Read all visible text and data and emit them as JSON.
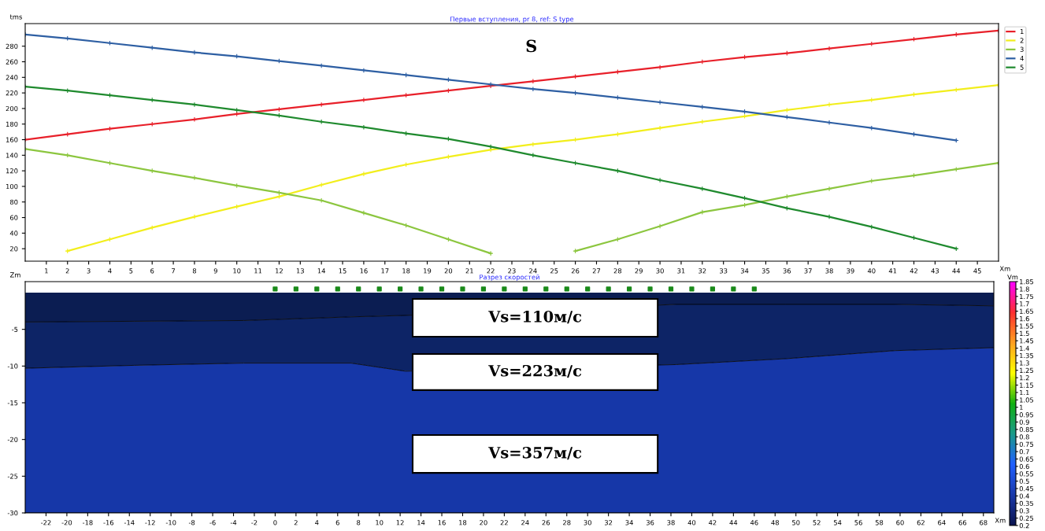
{
  "chart_data": [
    {
      "type": "line",
      "title": "Первые вступления, pr 8, ref: S type",
      "xlabel": "Xm",
      "ylabel": "tms",
      "x": [
        0,
        2,
        4,
        6,
        8,
        10,
        12,
        14,
        16,
        18,
        20,
        22,
        24,
        26,
        28,
        30,
        32,
        34,
        36,
        38,
        40,
        42,
        44,
        46
      ],
      "series": [
        {
          "name": "1",
          "color": "#e8202a",
          "values": [
            160,
            167,
            174,
            180,
            186,
            193,
            199,
            205,
            211,
            217,
            223,
            229,
            235,
            241,
            247,
            253,
            260,
            266,
            271,
            277,
            283,
            289,
            295,
            300
          ]
        },
        {
          "name": "2",
          "color": "#f2ee1c",
          "values": [
            null,
            17,
            32,
            47,
            61,
            74,
            87,
            102,
            116,
            128,
            138,
            147,
            154,
            160,
            167,
            175,
            183,
            190,
            198,
            205,
            211,
            218,
            224,
            230
          ]
        },
        {
          "name": "3",
          "color": "#8cc63f",
          "values": [
            148,
            140,
            130,
            120,
            111,
            101,
            92,
            82,
            66,
            50,
            32,
            14,
            null,
            17,
            32,
            49,
            67,
            76,
            87,
            97,
            107,
            114,
            122,
            130
          ]
        },
        {
          "name": "4",
          "color": "#2e5fa3",
          "values": [
            295,
            290,
            284,
            278,
            272,
            267,
            261,
            255,
            249,
            243,
            237,
            231,
            225,
            220,
            214,
            208,
            202,
            196,
            189,
            182,
            175,
            167,
            159,
            null
          ]
        },
        {
          "name": "5",
          "color": "#1f8a2e",
          "values": [
            228,
            223,
            217,
            211,
            205,
            198,
            191,
            183,
            176,
            168,
            161,
            151,
            140,
            130,
            120,
            108,
            97,
            85,
            72,
            61,
            48,
            34,
            20,
            null
          ]
        }
      ],
      "xlim": [
        0,
        46
      ],
      "ylim": [
        4,
        309
      ],
      "xticks": [
        1,
        2,
        3,
        4,
        5,
        6,
        7,
        8,
        9,
        10,
        11,
        12,
        13,
        14,
        15,
        16,
        17,
        18,
        19,
        20,
        21,
        22,
        23,
        24,
        25,
        26,
        27,
        28,
        29,
        30,
        31,
        32,
        33,
        34,
        35,
        36,
        37,
        38,
        39,
        40,
        41,
        42,
        43,
        44,
        45
      ],
      "yticks": [
        20,
        40,
        60,
        80,
        100,
        120,
        140,
        160,
        180,
        200,
        220,
        240,
        260,
        280
      ],
      "marker": "cross",
      "legend": "top right",
      "annotations": [
        "S"
      ]
    },
    {
      "type": "area",
      "title": "Разрез скоростей",
      "xlabel": "Xm",
      "ylabel": "Zm",
      "clabel": "Vm",
      "stacked": true,
      "x": [
        -24,
        -13.5,
        -3,
        7.3,
        12.5,
        38.5,
        49,
        59.5,
        69
      ],
      "series": [
        {
          "color": "#0b1d52",
          "values": [
            -4.0,
            -3.9,
            -3.8,
            -3.3,
            -3.1,
            -1.6,
            -1.6,
            -1.6,
            -1.8
          ]
        },
        {
          "color": "#0d2466",
          "values": [
            -6.3,
            -6.0,
            -5.8,
            -6.3,
            -7.6,
            -8.2,
            -7.4,
            -6.3,
            -5.7
          ]
        },
        {
          "color": "#1637a8",
          "values": [
            -19.7,
            -20.1,
            -20.4,
            -20.4,
            -19.3,
            -20.2,
            -21.0,
            -22.1,
            -22.5
          ]
        },
        {
          "type": "scatter",
          "color": "#1a8a1a",
          "marker": "square",
          "x": [
            0,
            2,
            4,
            6,
            8,
            10,
            12,
            14,
            16,
            18,
            20,
            22,
            24,
            26,
            28,
            30,
            32,
            34,
            36,
            38,
            40,
            42,
            44,
            46
          ],
          "values": [
            0.5,
            0.5,
            0.5,
            0.5,
            0.5,
            0.5,
            0.5,
            0.5,
            0.5,
            0.5,
            0.5,
            0.5,
            0.5,
            0.5,
            0.5,
            0.5,
            0.5,
            0.5,
            0.5,
            0.5,
            0.5,
            0.5,
            0.5,
            0.5
          ]
        }
      ],
      "xlim": [
        -24,
        69
      ],
      "ylim": [
        -30,
        1.5
      ],
      "xticks": [
        -22,
        -20,
        -18,
        -16,
        -14,
        -12,
        -10,
        -8,
        -6,
        -4,
        -2,
        0,
        2,
        4,
        6,
        8,
        10,
        12,
        14,
        16,
        18,
        20,
        22,
        24,
        26,
        28,
        30,
        32,
        34,
        36,
        38,
        40,
        42,
        44,
        46,
        48,
        50,
        52,
        54,
        56,
        58,
        60,
        62,
        64,
        66,
        68
      ],
      "yticks": [
        -30,
        -25,
        -20,
        -15,
        -10,
        -5
      ],
      "clim": [
        0.2,
        1.85
      ],
      "cticks": [
        0.2,
        0.25,
        0.3,
        0.35,
        0.4,
        0.45,
        0.5,
        0.55,
        0.6,
        0.65,
        0.7,
        0.75,
        0.8,
        0.85,
        0.9,
        0.95,
        1,
        1.05,
        1.1,
        1.15,
        1.2,
        1.25,
        1.3,
        1.35,
        1.4,
        1.45,
        1.5,
        1.55,
        1.6,
        1.65,
        1.7,
        1.75,
        1.8,
        1.85
      ],
      "annotations": [
        "Vs=110м/с",
        "Vs=223м/с",
        "Vs=357м/с"
      ]
    }
  ]
}
